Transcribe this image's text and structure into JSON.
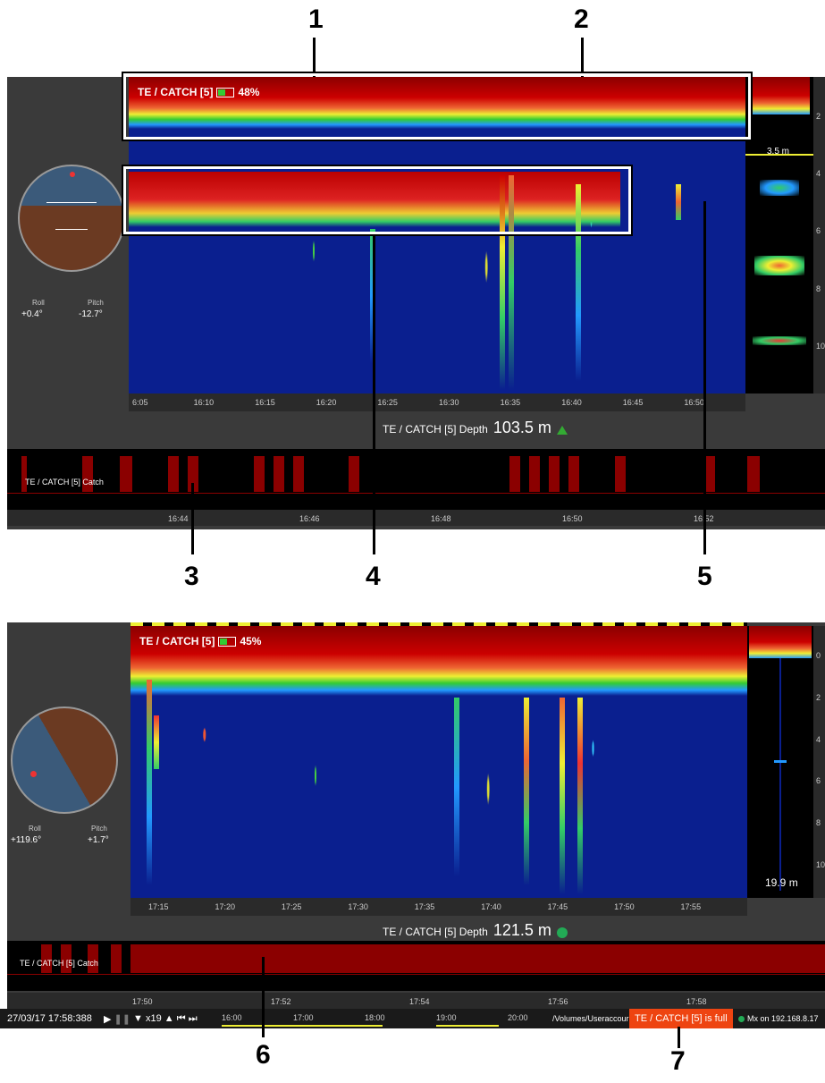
{
  "callouts": [
    "1",
    "2",
    "3",
    "4",
    "5",
    "6",
    "7"
  ],
  "screen1": {
    "echogram_title": "TE / CATCH [5]",
    "battery_pct": "48%",
    "battery_level": 0.48,
    "time_ticks": [
      "6:05",
      "16:10",
      "16:15",
      "16:20",
      "16:25",
      "16:30",
      "16:35",
      "16:40",
      "16:45",
      "16:50"
    ],
    "depth_label": "TE / CATCH [5] Depth",
    "depth_value": "103.5 m",
    "column_depth": "3.5 m",
    "roll_label": "Roll",
    "roll_value": "+0.4°",
    "pitch_label": "Pitch",
    "pitch_value": "-12.7°",
    "catch_label": "TE / CATCH [5] Catch",
    "catch_ticks": [
      "16:44",
      "16:46",
      "16:48",
      "16:50",
      "16:52"
    ],
    "depth_scale": [
      "2",
      "4",
      "6",
      "8",
      "10"
    ]
  },
  "screen2": {
    "echogram_title": "TE / CATCH [5]",
    "battery_pct": "45%",
    "battery_level": 0.45,
    "time_ticks": [
      "17:15",
      "17:20",
      "17:25",
      "17:30",
      "17:35",
      "17:40",
      "17:45",
      "17:50",
      "17:55"
    ],
    "depth_label": "TE / CATCH [5] Depth",
    "depth_value": "121.5 m",
    "column_depth": "19.9 m",
    "roll_label": "Roll",
    "roll_value": "+119.6°",
    "pitch_label": "Pitch",
    "pitch_value": "+1.7°",
    "catch_label": "TE / CATCH [5] Catch",
    "catch_ticks": [
      "17:50",
      "17:52",
      "17:54",
      "17:56",
      "17:58"
    ],
    "depth_scale": [
      "0",
      "2",
      "4",
      "6",
      "8",
      "10"
    ],
    "status": {
      "datetime": "27/03/17 17:58:388",
      "speed": "x19",
      "timeline": [
        "16:00",
        "17:00",
        "18:00",
        "19:00",
        "20:00"
      ],
      "path": "/Volumes/Useraccour",
      "alert": "TE / CATCH [5] is full",
      "connection": "Mx on 192.168.8.17"
    }
  },
  "colors": {
    "echo_background": "#0a1f8f",
    "catch_red": "#8b0000",
    "alert_red": "#e41"
  }
}
